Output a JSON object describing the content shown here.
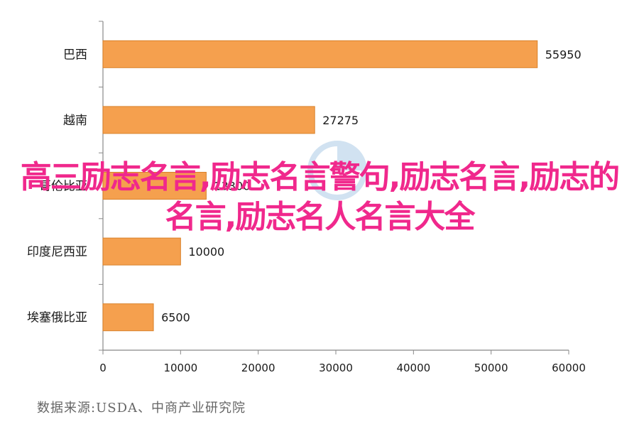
{
  "chart_data": {
    "type": "bar",
    "orientation": "horizontal",
    "categories": [
      "巴西",
      "越南",
      "哥伦比亚",
      "印度尼西亚",
      "埃塞俄比亚"
    ],
    "values": [
      55950,
      27275,
      13300,
      10000,
      6500
    ],
    "value_labels": [
      "55950",
      "27275",
      "13300",
      "10000",
      "6500"
    ],
    "xlim": [
      0,
      60000
    ],
    "xticks": [
      "0",
      "10000",
      "20000",
      "30000",
      "40000",
      "50000",
      "60000"
    ],
    "grid": false,
    "colors": {
      "bar": "#f5a04e",
      "bar_edge": "#d9822b",
      "axis": "#888888"
    }
  },
  "source_note": "数据来源:USDA、中商产业研究院",
  "overlay_title": "高三励志名言,励志名言警句,励志名言,励志的名言,励志名人名言大全"
}
